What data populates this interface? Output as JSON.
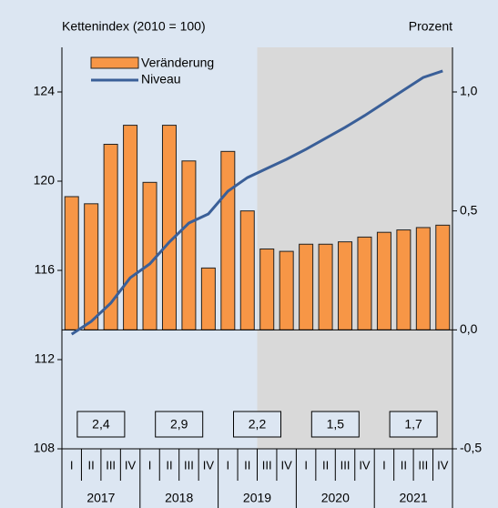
{
  "chart_data": {
    "type": "bar_line",
    "y_label": "Kettenindex (2010 = 100)",
    "y2_label": "Prozent",
    "categories": [
      "I",
      "II",
      "III",
      "IV",
      "I",
      "II",
      "III",
      "IV",
      "I",
      "II",
      "III",
      "IV",
      "I",
      "II",
      "III",
      "IV",
      "I",
      "II",
      "III",
      "IV"
    ],
    "years": [
      "2017",
      "2018",
      "2019",
      "2020",
      "2021"
    ],
    "series": [
      {
        "name": "Veränderung",
        "color": "#f79646",
        "axis": "y2",
        "values": [
          0.56,
          0.53,
          0.78,
          0.86,
          0.62,
          0.86,
          0.71,
          0.26,
          0.75,
          0.5,
          0.34,
          0.33,
          0.36,
          0.36,
          0.37,
          0.39,
          0.41,
          0.42,
          0.43,
          0.44
        ]
      },
      {
        "name": "Niveau",
        "color": "#3a5f98",
        "values": [
          113.14,
          113.71,
          114.53,
          115.67,
          116.29,
          117.27,
          118.12,
          118.53,
          119.55,
          120.16,
          120.57,
          120.98,
          121.43,
          121.92,
          122.41,
          122.94,
          123.51,
          124.08,
          124.65,
          124.94
        ]
      }
    ],
    "annual_values": [
      2.4,
      2.9,
      2.2,
      1.5,
      1.7
    ],
    "annual_value_labels": [
      "2,4",
      "2,9",
      "2,2",
      "1,5",
      "1,7"
    ],
    "ylim": [
      108,
      126
    ],
    "yticks": [
      108,
      112,
      116,
      120,
      124
    ],
    "y2lim": [
      -0.5,
      1.1875
    ],
    "y2ticks": [
      {
        "value": -0.5,
        "label": "-0,5"
      },
      {
        "value": 0,
        "label": "0,0"
      },
      {
        "value": 0.5,
        "label": "0,5"
      },
      {
        "value": 1.0,
        "label": "1,0"
      }
    ]
  }
}
